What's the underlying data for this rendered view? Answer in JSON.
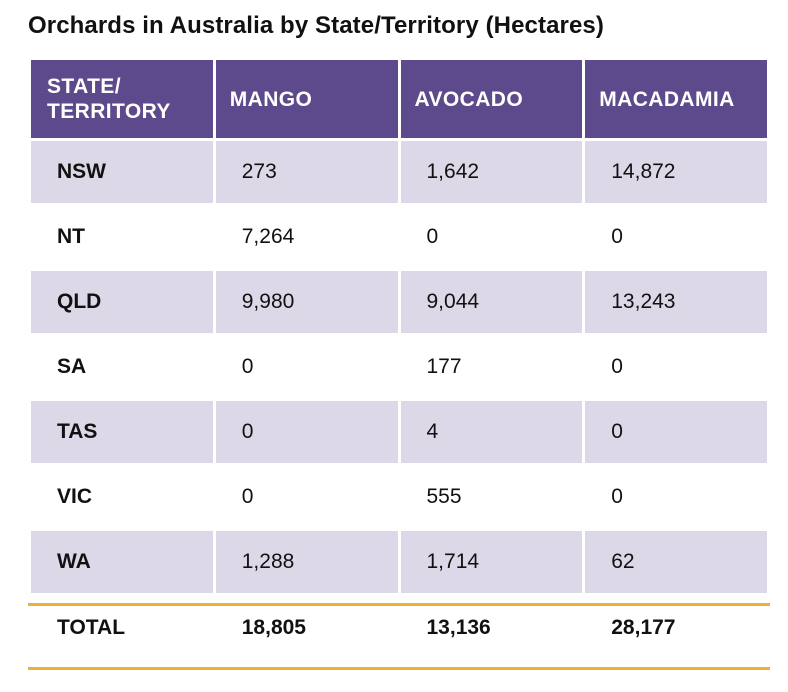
{
  "chart_data": {
    "type": "table",
    "title": "Orchards in Australia by State/Territory (Hectares)",
    "columns": [
      "STATE/\nTERRITORY",
      "MANGO",
      "AVOCADO",
      "MACADAMIA"
    ],
    "rows": [
      [
        "NSW",
        "273",
        "1,642",
        "14,872"
      ],
      [
        "NT",
        "7,264",
        "0",
        "0"
      ],
      [
        "QLD",
        "9,980",
        "9,044",
        "13,243"
      ],
      [
        "SA",
        "0",
        "177",
        "0"
      ],
      [
        "TAS",
        "0",
        "4",
        "0"
      ],
      [
        "VIC",
        "0",
        "555",
        "0"
      ],
      [
        "WA",
        "1,288",
        "1,714",
        "62"
      ]
    ],
    "total": [
      "TOTAL",
      "18,805",
      "13,136",
      "28,177"
    ]
  },
  "colors": {
    "header_bg": "#5d4a8c",
    "shaded_row": "#dcd8e7",
    "total_rule": "#f0b032"
  }
}
